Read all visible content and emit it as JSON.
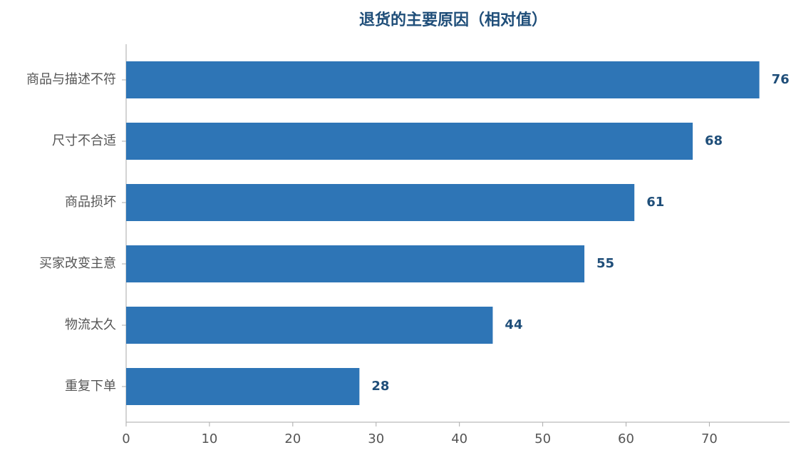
{
  "chart_data": {
    "type": "bar",
    "orientation": "horizontal",
    "title": "退货的主要原因（相对值）",
    "categories": [
      "商品与描述不符",
      "尺寸不合适",
      "商品损坏",
      "买家改变主意",
      "物流太久",
      "重复下单"
    ],
    "values": [
      76,
      68,
      61,
      55,
      44,
      28
    ],
    "color": "#2e75b6",
    "xlim": [
      0,
      79.8
    ],
    "xticks": [
      0,
      10,
      20,
      30,
      40,
      50,
      60,
      70
    ],
    "grid": false
  }
}
